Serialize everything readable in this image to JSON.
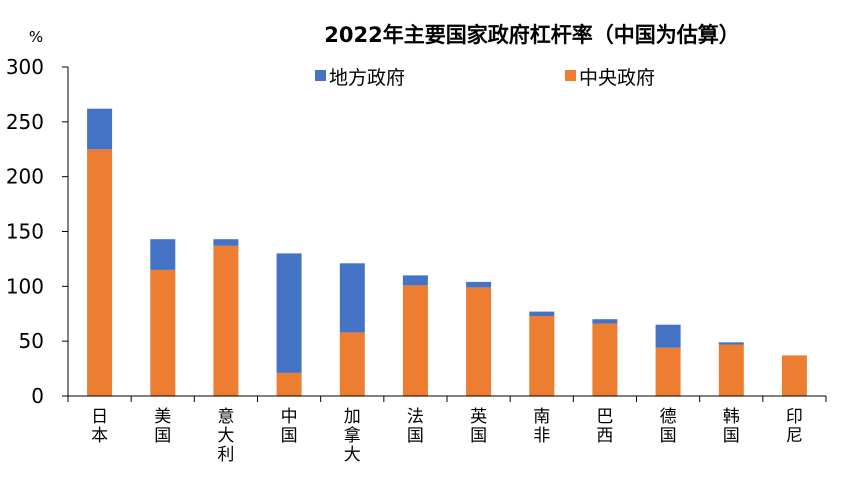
{
  "chart_data": {
    "type": "bar",
    "stacked": true,
    "title": "2022年主要国家政府杠杆率（中国为估算）",
    "ylabel": "%",
    "xlabel": "",
    "ylim": [
      0,
      300
    ],
    "yticks": [
      0,
      50,
      100,
      150,
      200,
      250,
      300
    ],
    "grid": false,
    "legend_position": "top",
    "categories": [
      "日本",
      "美国",
      "意大利",
      "中国",
      "加拿大",
      "法国",
      "英国",
      "南非",
      "巴西",
      "德国",
      "韩国",
      "印尼"
    ],
    "series": [
      {
        "name": "中央政府",
        "color": "#ED7D31",
        "values": [
          225,
          115,
          137,
          21,
          58,
          101,
          99,
          73,
          66,
          44,
          47,
          37
        ]
      },
      {
        "name": "地方政府",
        "color": "#4472C4",
        "values": [
          37,
          28,
          6,
          109,
          63,
          9,
          5,
          4,
          4,
          21,
          2,
          0
        ]
      }
    ],
    "legend": [
      {
        "label": "地方政府",
        "color": "#4472C4"
      },
      {
        "label": "中央政府",
        "color": "#ED7D31"
      }
    ]
  }
}
